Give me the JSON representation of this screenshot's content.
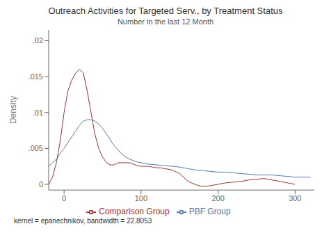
{
  "chart_data": {
    "type": "line",
    "title": "Outreach Activities for Targeted Serv., by Treatment Status",
    "subtitle": "Number in the last 12 Month",
    "ylabel": "Density",
    "annotations": [
      "kernel = epanechnikov, bandwidth = 22.8053"
    ],
    "xlim": [
      -20,
      325
    ],
    "ylim": [
      -0.0008,
      0.0215
    ],
    "xticks": [
      0,
      100,
      200,
      300
    ],
    "yticks": [
      0,
      {
        "value": 0.005,
        "label": ".005"
      },
      {
        "value": 0.01,
        "label": ".01"
      },
      {
        "value": 0.015,
        "label": ".015"
      },
      {
        "value": 0.02,
        "label": ".02"
      }
    ],
    "grid": false,
    "legend": "bottom",
    "series": [
      {
        "name": "PBF Group",
        "color": "#5577aa",
        "x": [
          -20,
          -15,
          -10,
          -5,
          0,
          5,
          10,
          15,
          20,
          25,
          30,
          35,
          40,
          45,
          50,
          55,
          60,
          65,
          70,
          75,
          80,
          85,
          90,
          95,
          100,
          110,
          120,
          130,
          140,
          150,
          160,
          170,
          180,
          190,
          200,
          210,
          220,
          230,
          240,
          250,
          260,
          270,
          280,
          290,
          300,
          310,
          320
        ],
        "values": [
          0.0025,
          0.003,
          0.0035,
          0.0043,
          0.005,
          0.0058,
          0.0066,
          0.0074,
          0.0082,
          0.0088,
          0.009,
          0.009,
          0.0088,
          0.0084,
          0.0078,
          0.007,
          0.0062,
          0.0054,
          0.0048,
          0.0042,
          0.0038,
          0.0035,
          0.0033,
          0.0031,
          0.003,
          0.0028,
          0.0027,
          0.0026,
          0.0025,
          0.0024,
          0.0022,
          0.002,
          0.0019,
          0.0018,
          0.0017,
          0.0017,
          0.0016,
          0.0015,
          0.0014,
          0.0013,
          0.0013,
          0.0013,
          0.0012,
          0.0011,
          0.001,
          0.001,
          0.001
        ]
      },
      {
        "name": "Comparison Group",
        "color": "#993333",
        "x": [
          -20,
          -15,
          -10,
          -5,
          0,
          5,
          10,
          15,
          20,
          25,
          30,
          35,
          40,
          45,
          50,
          55,
          60,
          65,
          70,
          75,
          80,
          85,
          90,
          95,
          100,
          105,
          110,
          115,
          120,
          125,
          130,
          140,
          150,
          155,
          160,
          165,
          170,
          175,
          180,
          190,
          200,
          210,
          220,
          230,
          240,
          250,
          260,
          270,
          280,
          290,
          300
        ],
        "values": [
          0.0,
          0.001,
          0.003,
          0.006,
          0.01,
          0.013,
          0.0145,
          0.0155,
          0.016,
          0.0155,
          0.013,
          0.01,
          0.007,
          0.005,
          0.0038,
          0.003,
          0.0027,
          0.0027,
          0.003,
          0.003,
          0.003,
          0.003,
          0.0028,
          0.0026,
          0.0025,
          0.0025,
          0.0025,
          0.0024,
          0.0023,
          0.0023,
          0.0022,
          0.002,
          0.0015,
          0.001,
          0.0005,
          0.0002,
          0.0,
          -0.0002,
          -0.0003,
          -0.0002,
          0.0,
          0.0002,
          0.0003,
          0.0004,
          0.0006,
          0.0007,
          0.0008,
          0.0006,
          0.0004,
          0.0002,
          0.0
        ]
      }
    ]
  }
}
